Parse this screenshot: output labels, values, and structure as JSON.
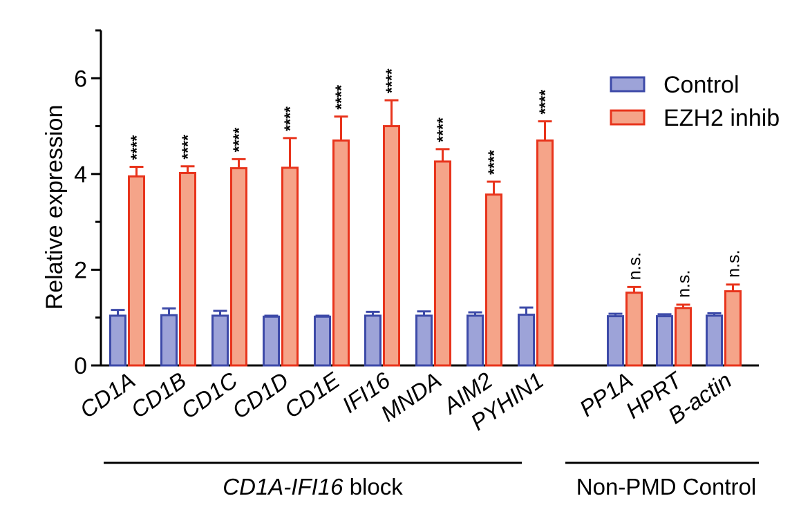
{
  "chart_data": {
    "type": "bar",
    "ylabel": "Relative expression",
    "ylim": [
      0,
      7
    ],
    "yticks": [
      0,
      2,
      4,
      6
    ],
    "categories": [
      "CD1A",
      "CD1B",
      "CD1C",
      "CD1D",
      "CD1E",
      "IFI16",
      "MNDA",
      "AIM2",
      "PYHIN1",
      "PP1A",
      "HPRT",
      "B-actin"
    ],
    "series": [
      {
        "name": "Control",
        "color": "#9da3d8",
        "edge": "#3d4aa8",
        "values": [
          1.04,
          1.05,
          1.04,
          1.02,
          1.02,
          1.04,
          1.04,
          1.04,
          1.06,
          1.03,
          1.03,
          1.04
        ],
        "errors": [
          0.12,
          0.14,
          0.1,
          0.02,
          0.02,
          0.08,
          0.09,
          0.07,
          0.15,
          0.05,
          0.04,
          0.05
        ]
      },
      {
        "name": "EZH2 inhib",
        "color": "#f5a489",
        "edge": "#e8341c",
        "values": [
          3.95,
          4.02,
          4.12,
          4.13,
          4.7,
          5.0,
          4.26,
          3.57,
          4.7,
          1.52,
          1.2,
          1.55
        ],
        "errors": [
          0.2,
          0.14,
          0.19,
          0.62,
          0.5,
          0.54,
          0.26,
          0.27,
          0.4,
          0.12,
          0.07,
          0.14
        ]
      }
    ],
    "significance": [
      "****",
      "****",
      "****",
      "****",
      "****",
      "****",
      "****",
      "****",
      "****",
      "n.s.",
      "n.s.",
      "n.s."
    ],
    "groups": [
      {
        "label_italic": "CD1A-IFI16",
        "label_rest": " block",
        "from": 0,
        "to": 8
      },
      {
        "label_italic": "",
        "label_rest": "Non-PMD Control",
        "from": 9,
        "to": 11
      }
    ],
    "legend_position": "top-right",
    "grid": false
  }
}
